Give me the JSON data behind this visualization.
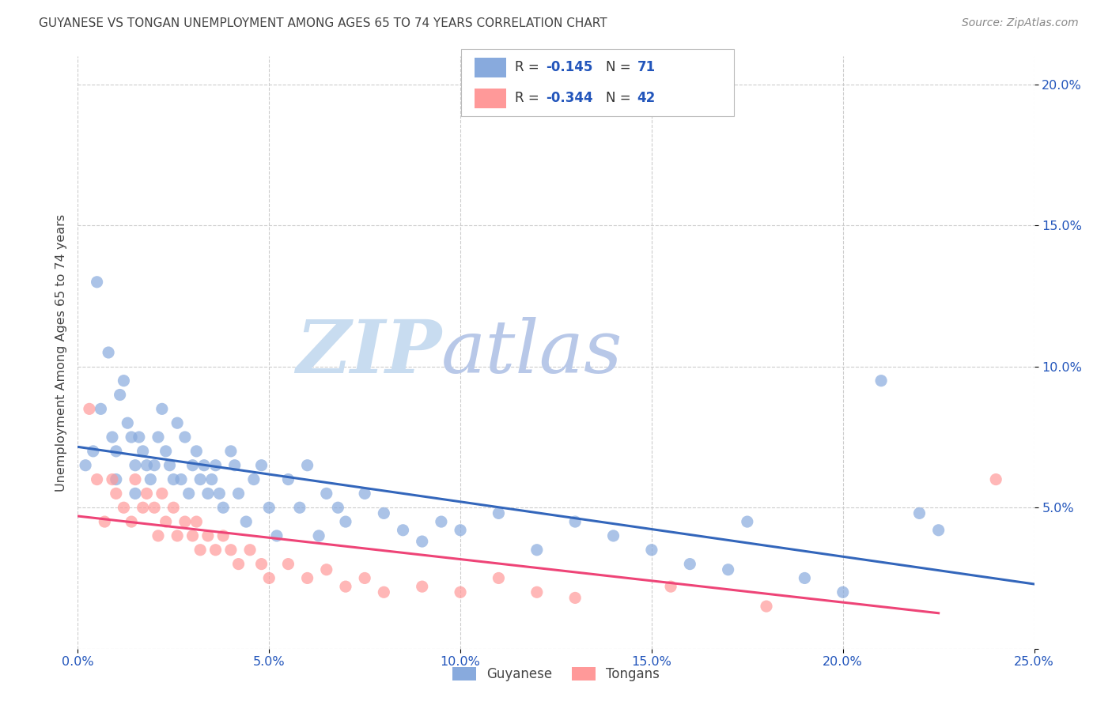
{
  "title": "GUYANESE VS TONGAN UNEMPLOYMENT AMONG AGES 65 TO 74 YEARS CORRELATION CHART",
  "source": "Source: ZipAtlas.com",
  "ylabel": "Unemployment Among Ages 65 to 74 years",
  "xlim": [
    0.0,
    0.25
  ],
  "ylim": [
    0.0,
    0.21
  ],
  "x_ticks": [
    0.0,
    0.05,
    0.1,
    0.15,
    0.2,
    0.25
  ],
  "x_tick_labels": [
    "0.0%",
    "5.0%",
    "10.0%",
    "15.0%",
    "20.0%",
    "25.0%"
  ],
  "y_ticks": [
    0.0,
    0.05,
    0.1,
    0.15,
    0.2
  ],
  "y_tick_labels": [
    "",
    "5.0%",
    "10.0%",
    "15.0%",
    "20.0%"
  ],
  "guyanese_color": "#88AADD",
  "tongan_color": "#FF9999",
  "guyanese_line_color": "#3366BB",
  "tongan_line_color": "#EE4477",
  "guyanese_R": -0.145,
  "guyanese_N": 71,
  "tongan_R": -0.344,
  "tongan_N": 42,
  "legend_color": "#2255BB",
  "watermark_zip": "ZIP",
  "watermark_atlas": "atlas",
  "background_color": "#ffffff",
  "guyanese_x": [
    0.002,
    0.004,
    0.005,
    0.006,
    0.008,
    0.009,
    0.01,
    0.01,
    0.011,
    0.012,
    0.013,
    0.014,
    0.015,
    0.015,
    0.016,
    0.017,
    0.018,
    0.019,
    0.02,
    0.021,
    0.022,
    0.023,
    0.024,
    0.025,
    0.026,
    0.027,
    0.028,
    0.029,
    0.03,
    0.031,
    0.032,
    0.033,
    0.034,
    0.035,
    0.036,
    0.037,
    0.038,
    0.04,
    0.041,
    0.042,
    0.044,
    0.046,
    0.048,
    0.05,
    0.052,
    0.055,
    0.058,
    0.06,
    0.063,
    0.065,
    0.068,
    0.07,
    0.075,
    0.08,
    0.085,
    0.09,
    0.095,
    0.1,
    0.11,
    0.12,
    0.13,
    0.14,
    0.15,
    0.16,
    0.17,
    0.175,
    0.19,
    0.2,
    0.21,
    0.22,
    0.225
  ],
  "guyanese_y": [
    0.065,
    0.07,
    0.13,
    0.085,
    0.105,
    0.075,
    0.07,
    0.06,
    0.09,
    0.095,
    0.08,
    0.075,
    0.065,
    0.055,
    0.075,
    0.07,
    0.065,
    0.06,
    0.065,
    0.075,
    0.085,
    0.07,
    0.065,
    0.06,
    0.08,
    0.06,
    0.075,
    0.055,
    0.065,
    0.07,
    0.06,
    0.065,
    0.055,
    0.06,
    0.065,
    0.055,
    0.05,
    0.07,
    0.065,
    0.055,
    0.045,
    0.06,
    0.065,
    0.05,
    0.04,
    0.06,
    0.05,
    0.065,
    0.04,
    0.055,
    0.05,
    0.045,
    0.055,
    0.048,
    0.042,
    0.038,
    0.045,
    0.042,
    0.048,
    0.035,
    0.045,
    0.04,
    0.035,
    0.03,
    0.028,
    0.045,
    0.025,
    0.02,
    0.095,
    0.048,
    0.042
  ],
  "tongan_x": [
    0.003,
    0.005,
    0.007,
    0.009,
    0.01,
    0.012,
    0.014,
    0.015,
    0.017,
    0.018,
    0.02,
    0.021,
    0.022,
    0.023,
    0.025,
    0.026,
    0.028,
    0.03,
    0.031,
    0.032,
    0.034,
    0.036,
    0.038,
    0.04,
    0.042,
    0.045,
    0.048,
    0.05,
    0.055,
    0.06,
    0.065,
    0.07,
    0.075,
    0.08,
    0.09,
    0.1,
    0.11,
    0.12,
    0.13,
    0.155,
    0.18,
    0.24
  ],
  "tongan_y": [
    0.085,
    0.06,
    0.045,
    0.06,
    0.055,
    0.05,
    0.045,
    0.06,
    0.05,
    0.055,
    0.05,
    0.04,
    0.055,
    0.045,
    0.05,
    0.04,
    0.045,
    0.04,
    0.045,
    0.035,
    0.04,
    0.035,
    0.04,
    0.035,
    0.03,
    0.035,
    0.03,
    0.025,
    0.03,
    0.025,
    0.028,
    0.022,
    0.025,
    0.02,
    0.022,
    0.02,
    0.025,
    0.02,
    0.018,
    0.022,
    0.015,
    0.06
  ]
}
